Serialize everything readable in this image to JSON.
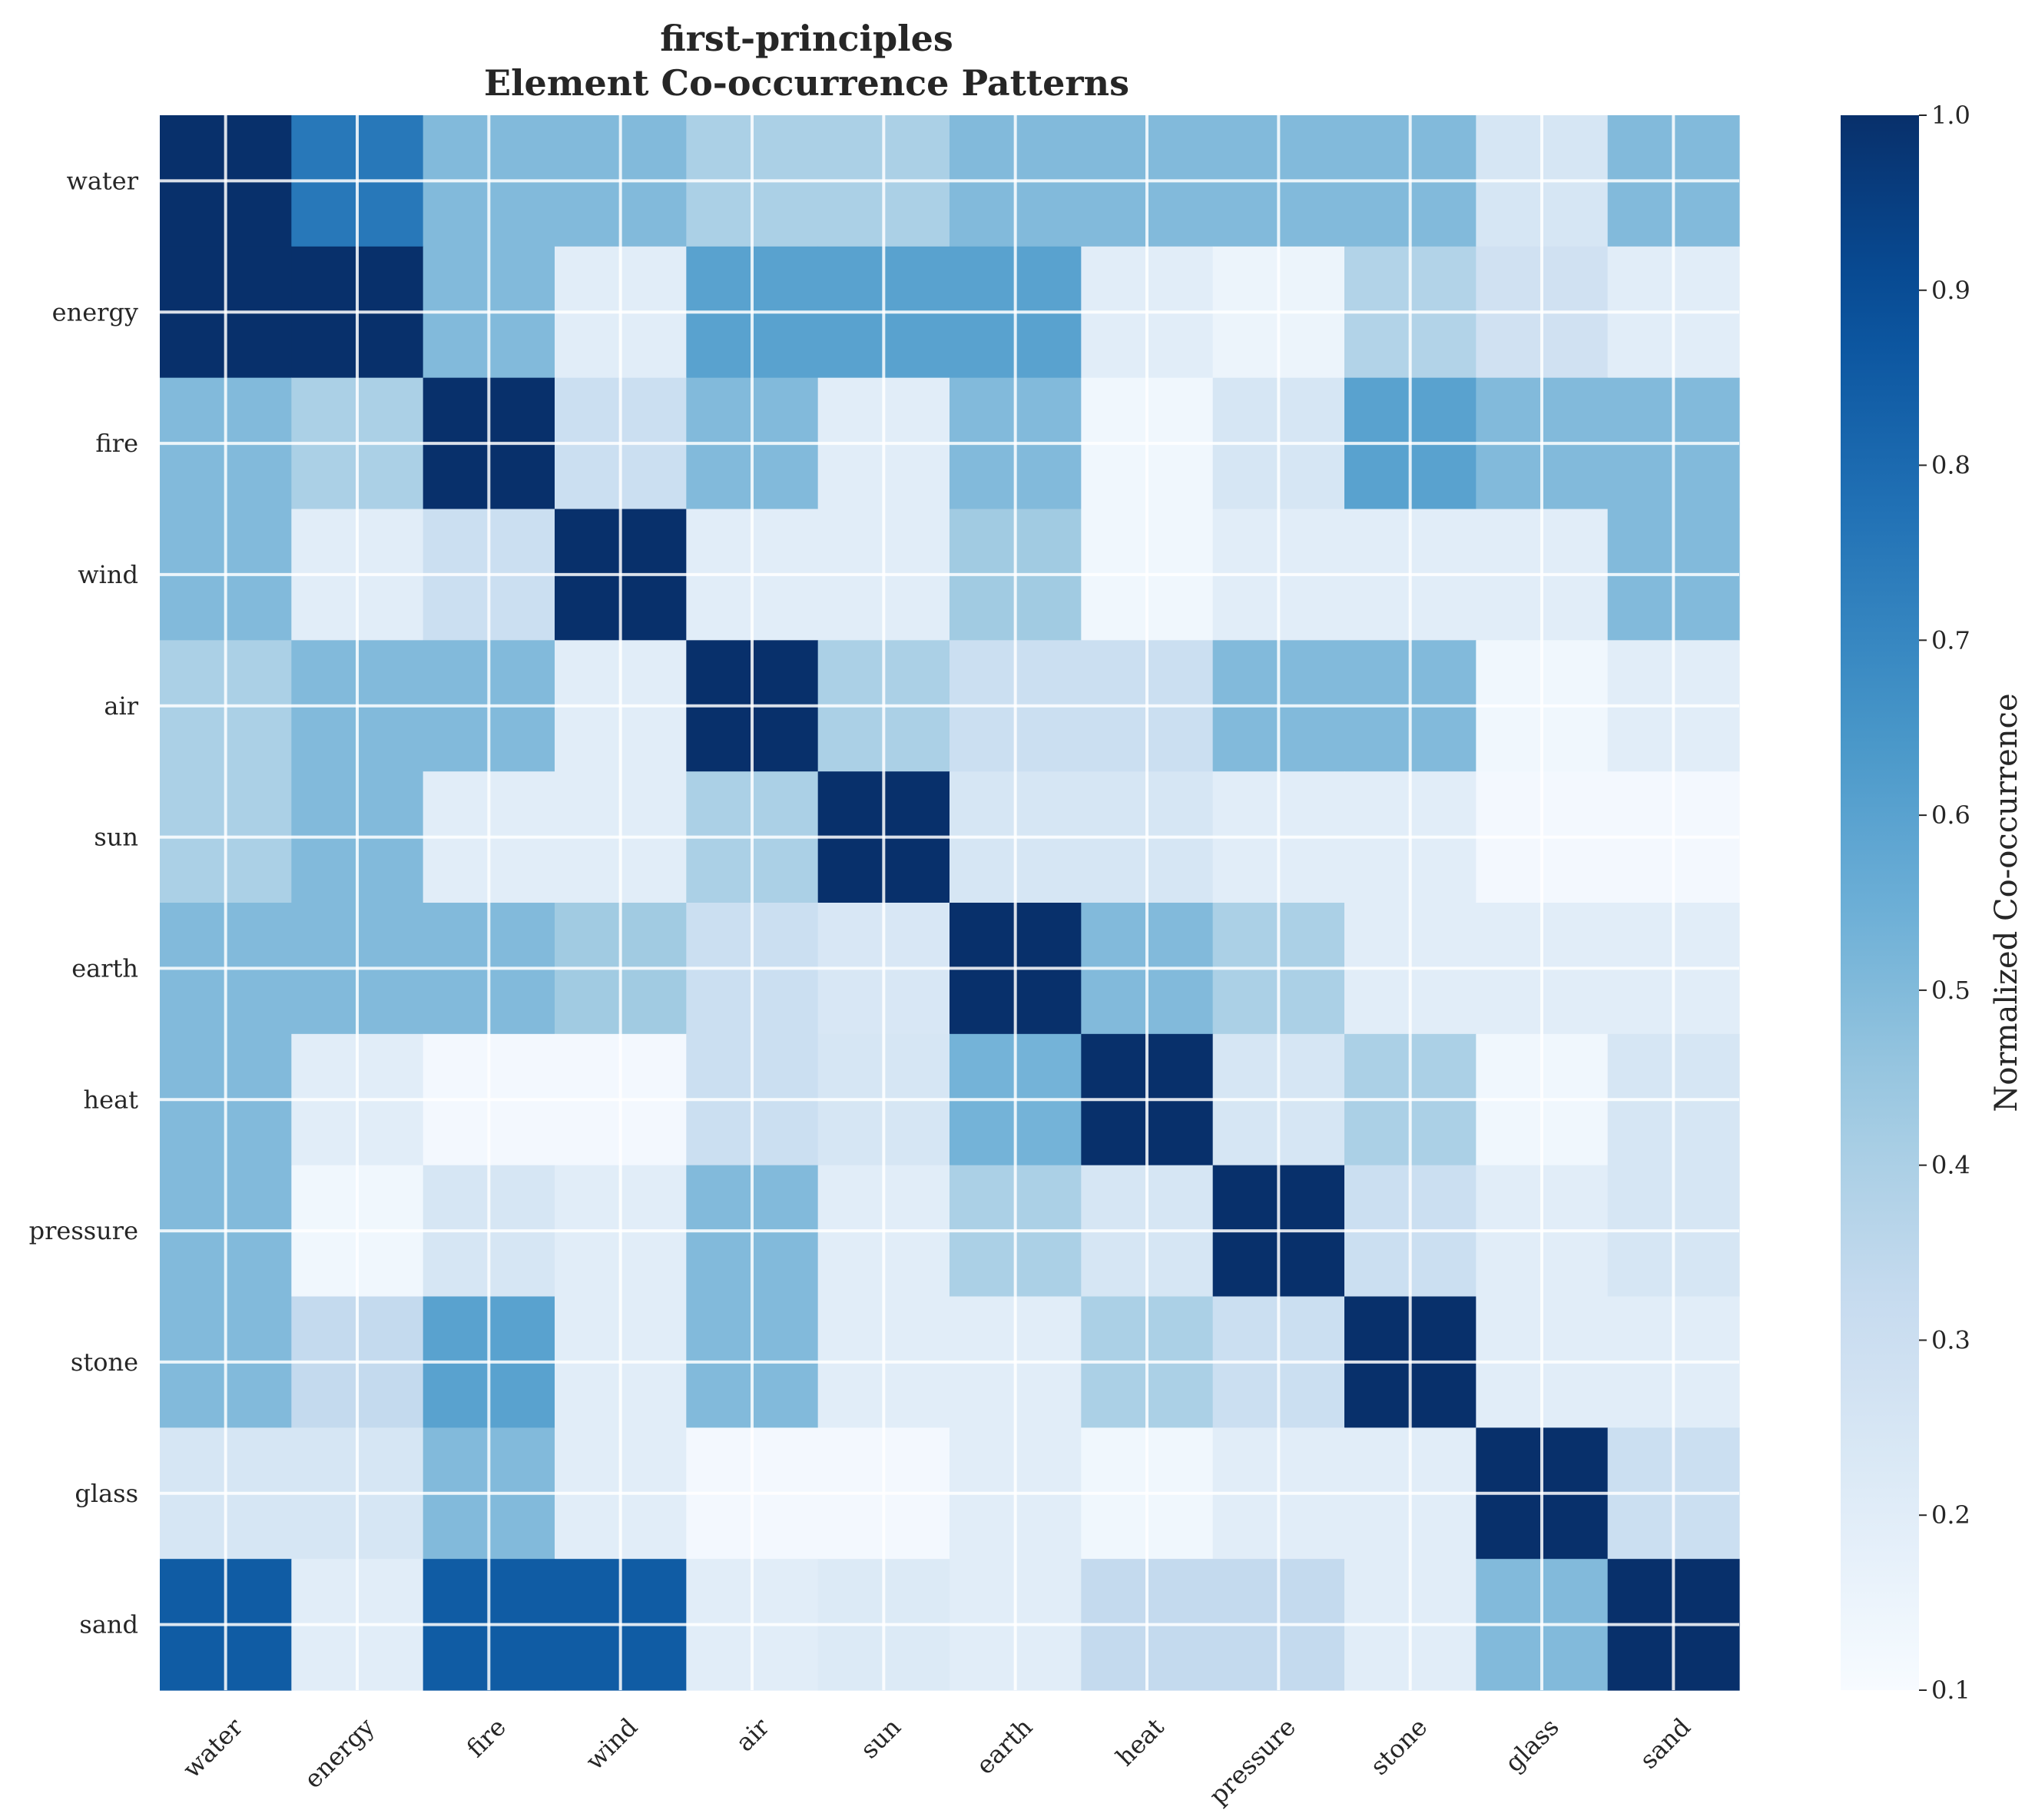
{
  "chart_data": {
    "type": "heatmap",
    "title": "first-principles",
    "subtitle": "Element Co-occurrence Patterns",
    "xlabel": "",
    "ylabel": "",
    "x_categories": [
      "water",
      "energy",
      "fire",
      "wind",
      "air",
      "sun",
      "earth",
      "heat",
      "pressure",
      "stone",
      "glass",
      "sand"
    ],
    "y_categories": [
      "water",
      "energy",
      "fire",
      "wind",
      "air",
      "sun",
      "earth",
      "heat",
      "pressure",
      "stone",
      "glass",
      "sand"
    ],
    "values": [
      [
        1.0,
        0.75,
        0.5,
        0.5,
        0.4,
        0.4,
        0.5,
        0.5,
        0.5,
        0.5,
        0.25,
        0.5
      ],
      [
        1.0,
        1.0,
        0.5,
        0.2,
        0.6,
        0.6,
        0.6,
        0.2,
        0.15,
        0.38,
        0.28,
        0.2
      ],
      [
        0.5,
        0.4,
        1.0,
        0.3,
        0.5,
        0.2,
        0.5,
        0.13,
        0.25,
        0.6,
        0.5,
        0.5
      ],
      [
        0.5,
        0.2,
        0.3,
        1.0,
        0.2,
        0.2,
        0.43,
        0.13,
        0.2,
        0.2,
        0.2,
        0.5
      ],
      [
        0.4,
        0.5,
        0.5,
        0.2,
        1.0,
        0.4,
        0.3,
        0.3,
        0.5,
        0.5,
        0.13,
        0.2
      ],
      [
        0.4,
        0.5,
        0.2,
        0.2,
        0.4,
        1.0,
        0.25,
        0.25,
        0.2,
        0.2,
        0.12,
        0.12
      ],
      [
        0.5,
        0.5,
        0.5,
        0.43,
        0.3,
        0.24,
        1.0,
        0.5,
        0.4,
        0.2,
        0.2,
        0.2
      ],
      [
        0.5,
        0.2,
        0.12,
        0.12,
        0.3,
        0.25,
        0.53,
        1.0,
        0.25,
        0.4,
        0.13,
        0.25
      ],
      [
        0.5,
        0.13,
        0.25,
        0.2,
        0.5,
        0.2,
        0.4,
        0.25,
        1.0,
        0.3,
        0.2,
        0.25
      ],
      [
        0.5,
        0.33,
        0.6,
        0.2,
        0.5,
        0.2,
        0.2,
        0.4,
        0.3,
        1.0,
        0.2,
        0.2
      ],
      [
        0.25,
        0.25,
        0.5,
        0.2,
        0.12,
        0.12,
        0.2,
        0.13,
        0.2,
        0.2,
        1.0,
        0.3
      ],
      [
        0.85,
        0.2,
        0.85,
        0.85,
        0.2,
        0.22,
        0.2,
        0.33,
        0.33,
        0.2,
        0.5,
        1.0
      ]
    ],
    "colorscale": "Blues",
    "vmin": 0.1,
    "vmax": 1.0,
    "colorbar": {
      "label": "Normalized Co-occurrence",
      "ticks": [
        "0.1",
        "0.2",
        "0.3",
        "0.4",
        "0.5",
        "0.6",
        "0.7",
        "0.8",
        "0.9",
        "1.0"
      ]
    },
    "grid": true,
    "grid_color": "#ffffff"
  }
}
